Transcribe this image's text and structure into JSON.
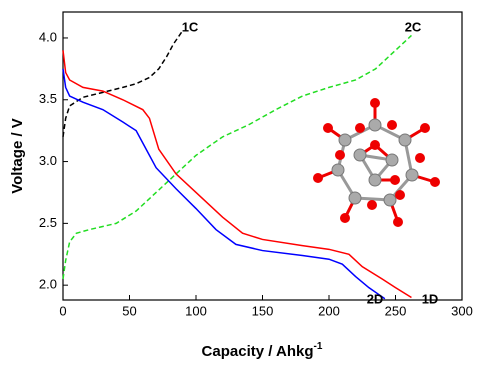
{
  "chart_data": {
    "type": "line",
    "x_label": {
      "text": "Capacity / Ahkg",
      "superscript": "-1"
    },
    "y_label": "Voltage / V",
    "xlim": [
      0,
      300
    ],
    "ylim": [
      1.88,
      4.21
    ],
    "xticks": [
      0,
      50,
      100,
      150,
      200,
      250,
      300
    ],
    "yticks": [
      {
        "value": 2,
        "label": "2.0"
      },
      2.5,
      {
        "value": 3,
        "label": "3.0"
      },
      3.5,
      {
        "value": 4,
        "label": "4.0"
      }
    ],
    "series": [
      {
        "name": "1C",
        "color": "#000000",
        "dashed": true,
        "x": [
          0,
          2,
          5,
          15,
          30,
          45,
          55,
          65,
          72,
          78,
          83,
          90
        ],
        "values": [
          3.2,
          3.35,
          3.45,
          3.52,
          3.56,
          3.6,
          3.63,
          3.68,
          3.75,
          3.85,
          3.95,
          4.06
        ]
      },
      {
        "name": "2C",
        "color": "#22dd22",
        "dashed": true,
        "x": [
          0,
          2,
          5,
          10,
          20,
          40,
          55,
          70,
          85,
          100,
          120,
          140,
          160,
          180,
          200,
          220,
          235,
          245,
          255,
          262
        ],
        "values": [
          2.05,
          2.2,
          2.35,
          2.42,
          2.45,
          2.5,
          2.6,
          2.75,
          2.9,
          3.05,
          3.2,
          3.3,
          3.42,
          3.53,
          3.6,
          3.66,
          3.75,
          3.85,
          3.95,
          4.02
        ]
      },
      {
        "name": "1D",
        "color": "#ff0000",
        "dashed": false,
        "x": [
          0,
          2,
          5,
          15,
          30,
          45,
          60,
          65,
          72,
          85,
          100,
          120,
          135,
          150,
          180,
          200,
          215,
          225,
          240,
          250,
          262
        ],
        "values": [
          3.9,
          3.72,
          3.66,
          3.6,
          3.57,
          3.5,
          3.42,
          3.35,
          3.1,
          2.9,
          2.75,
          2.55,
          2.42,
          2.37,
          2.32,
          2.29,
          2.25,
          2.15,
          2.05,
          1.98,
          1.9
        ]
      },
      {
        "name": "2D",
        "color": "#0000ff",
        "dashed": false,
        "x": [
          0,
          2,
          5,
          15,
          30,
          45,
          55,
          60,
          70,
          85,
          100,
          115,
          130,
          150,
          180,
          200,
          210,
          220,
          230,
          242
        ],
        "values": [
          3.75,
          3.6,
          3.53,
          3.48,
          3.42,
          3.32,
          3.25,
          3.15,
          2.95,
          2.78,
          2.62,
          2.45,
          2.33,
          2.28,
          2.24,
          2.21,
          2.17,
          2.07,
          1.98,
          1.89
        ]
      }
    ]
  }
}
